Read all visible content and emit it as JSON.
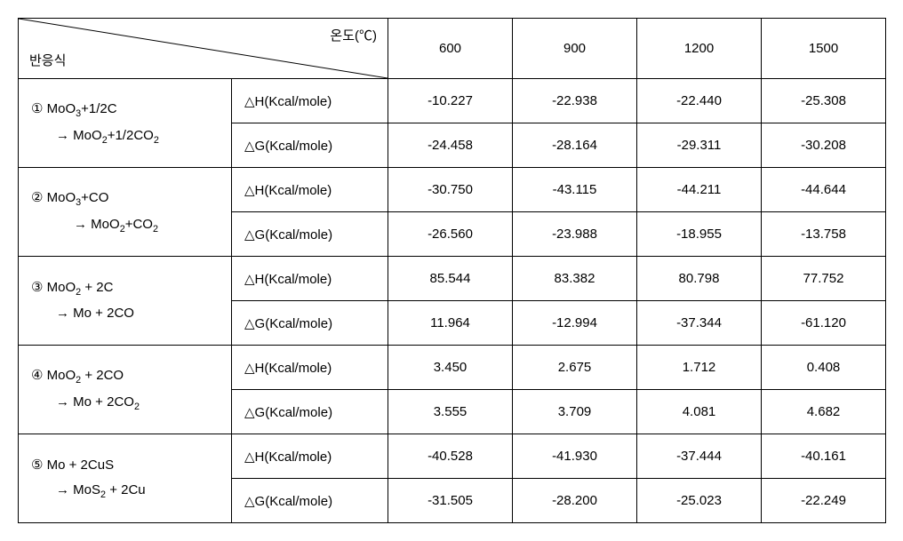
{
  "header": {
    "topLabel": "온도(℃)",
    "bottomLabel": "반응식",
    "temps": [
      "600",
      "900",
      "1200",
      "1500"
    ]
  },
  "metrics": {
    "dH": "△H(Kcal/mole)",
    "dG": "△G(Kcal/mole)"
  },
  "rows": [
    {
      "num": "①",
      "line1": "MoO₃+1/2C",
      "line2": "→ MoO₂+1/2CO₂",
      "indentMore": false,
      "dH": [
        "-10.227",
        "-22.938",
        "-22.440",
        "-25.308"
      ],
      "dG": [
        "-24.458",
        "-28.164",
        "-29.311",
        "-30.208"
      ]
    },
    {
      "num": "②",
      "line1": "MoO₃+CO",
      "line2": "→ MoO₂+CO₂",
      "indentMore": true,
      "dH": [
        "-30.750",
        "-43.115",
        "-44.211",
        "-44.644"
      ],
      "dG": [
        "-26.560",
        "-23.988",
        "-18.955",
        "-13.758"
      ]
    },
    {
      "num": "③",
      "line1": "MoO₂ + 2C",
      "line2": "→ Mo + 2CO",
      "indentMore": false,
      "dH": [
        "85.544",
        "83.382",
        "80.798",
        "77.752"
      ],
      "dG": [
        "11.964",
        "-12.994",
        "-37.344",
        "-61.120"
      ]
    },
    {
      "num": "④",
      "line1": "MoO₂ + 2CO",
      "line2": "→ Mo + 2CO₂",
      "indentMore": false,
      "dH": [
        "3.450",
        "2.675",
        "1.712",
        "0.408"
      ],
      "dG": [
        "3.555",
        "3.709",
        "4.081",
        "4.682"
      ]
    },
    {
      "num": "⑤",
      "line1": "Mo + 2CuS",
      "line2": "→ MoS₂ + 2Cu",
      "indentMore": false,
      "dH": [
        "-40.528",
        "-41.930",
        "-37.444",
        "-40.161"
      ],
      "dG": [
        "-31.505",
        "-28.200",
        "-25.023",
        "-22.249"
      ]
    }
  ]
}
